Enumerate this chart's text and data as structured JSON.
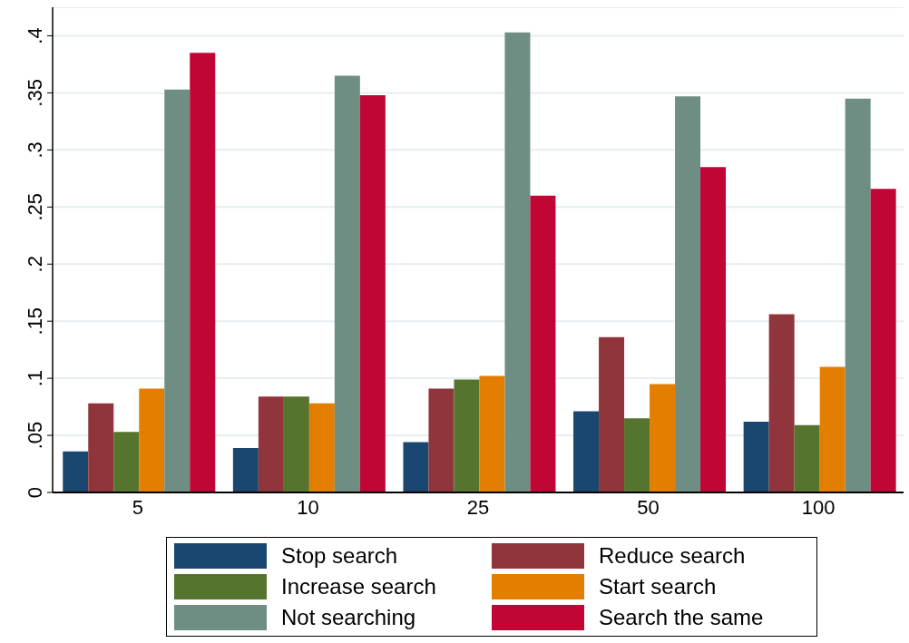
{
  "chart_data": {
    "type": "bar",
    "categories": [
      "5",
      "10",
      "25",
      "50",
      "100"
    ],
    "series": [
      {
        "name": "Stop search",
        "color": "#1a476f",
        "values": [
          0.036,
          0.039,
          0.044,
          0.071,
          0.062
        ]
      },
      {
        "name": "Reduce search",
        "color": "#90353b",
        "values": [
          0.078,
          0.084,
          0.091,
          0.136,
          0.156
        ]
      },
      {
        "name": "Increase search",
        "color": "#55752f",
        "values": [
          0.053,
          0.084,
          0.099,
          0.065,
          0.059
        ]
      },
      {
        "name": "Start search",
        "color": "#e37e00",
        "values": [
          0.091,
          0.078,
          0.102,
          0.095,
          0.11
        ]
      },
      {
        "name": "Not searching",
        "color": "#6e8e84",
        "values": [
          0.353,
          0.365,
          0.403,
          0.347,
          0.345
        ]
      },
      {
        "name": "Search the same",
        "color": "#c10534",
        "values": [
          0.385,
          0.348,
          0.26,
          0.285,
          0.266
        ]
      }
    ],
    "ylim": [
      0,
      0.425
    ],
    "yticks": [
      0,
      {
        "value": 0.05,
        "label": ".05"
      },
      {
        "value": 0.1,
        "label": ".1"
      },
      {
        "value": 0.15,
        "label": ".15"
      },
      {
        "value": 0.2,
        "label": ".2"
      },
      {
        "value": 0.25,
        "label": ".25"
      },
      {
        "value": 0.3,
        "label": ".3"
      },
      {
        "value": 0.35,
        "label": ".35"
      },
      {
        "value": 0.4,
        "label": ".4"
      }
    ],
    "grid": "y",
    "legend": "bottom"
  }
}
